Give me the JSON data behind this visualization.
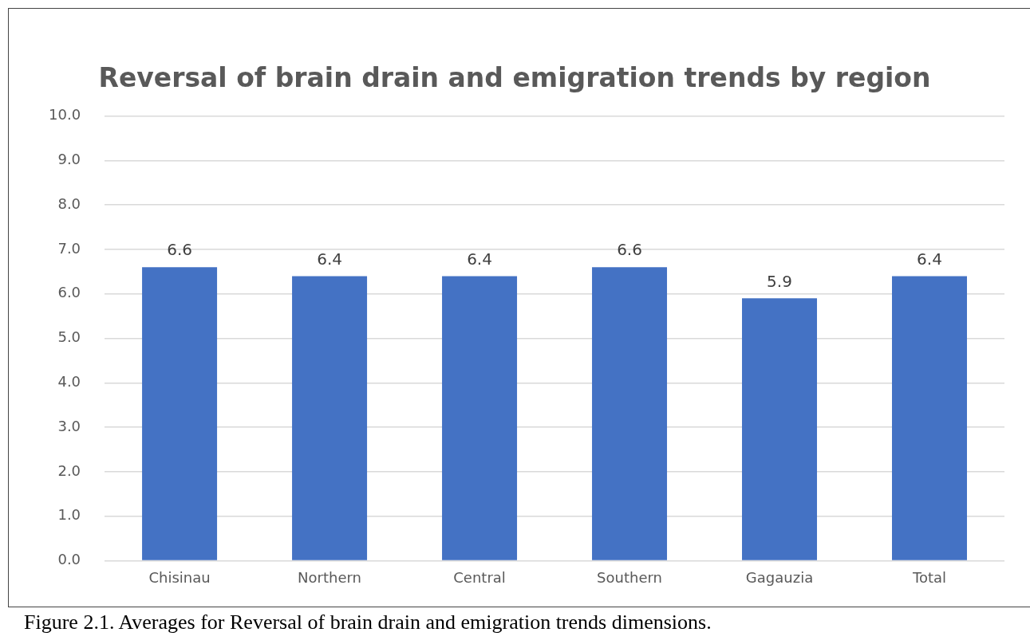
{
  "chart_data": {
    "type": "bar",
    "title": "Reversal of brain drain and emigration trends by region",
    "categories": [
      "Chisinau",
      "Northern",
      "Central",
      "Southern",
      "Gagauzia",
      "Total"
    ],
    "values": [
      6.6,
      6.4,
      6.4,
      6.6,
      5.9,
      6.4
    ],
    "color": "#4472c4",
    "ylim": [
      0,
      10
    ],
    "yticks": [
      {
        "value": 0,
        "label": "0.0"
      },
      {
        "value": 1,
        "label": "1.0"
      },
      {
        "value": 2,
        "label": "2.0"
      },
      {
        "value": 3,
        "label": "3.0"
      },
      {
        "value": 4,
        "label": "4.0"
      },
      {
        "value": 5,
        "label": "5.0"
      },
      {
        "value": 6,
        "label": "6.0"
      },
      {
        "value": 7,
        "label": "7.0"
      },
      {
        "value": 8,
        "label": "8.0"
      },
      {
        "value": 9,
        "label": "9.0"
      },
      {
        "value": 10,
        "label": "10.0"
      }
    ],
    "grid": "y",
    "legend": false,
    "data_labels": true,
    "annotations": [
      "Figure 2.1. Averages for Reversal of brain drain and emigration trends dimensions."
    ]
  }
}
